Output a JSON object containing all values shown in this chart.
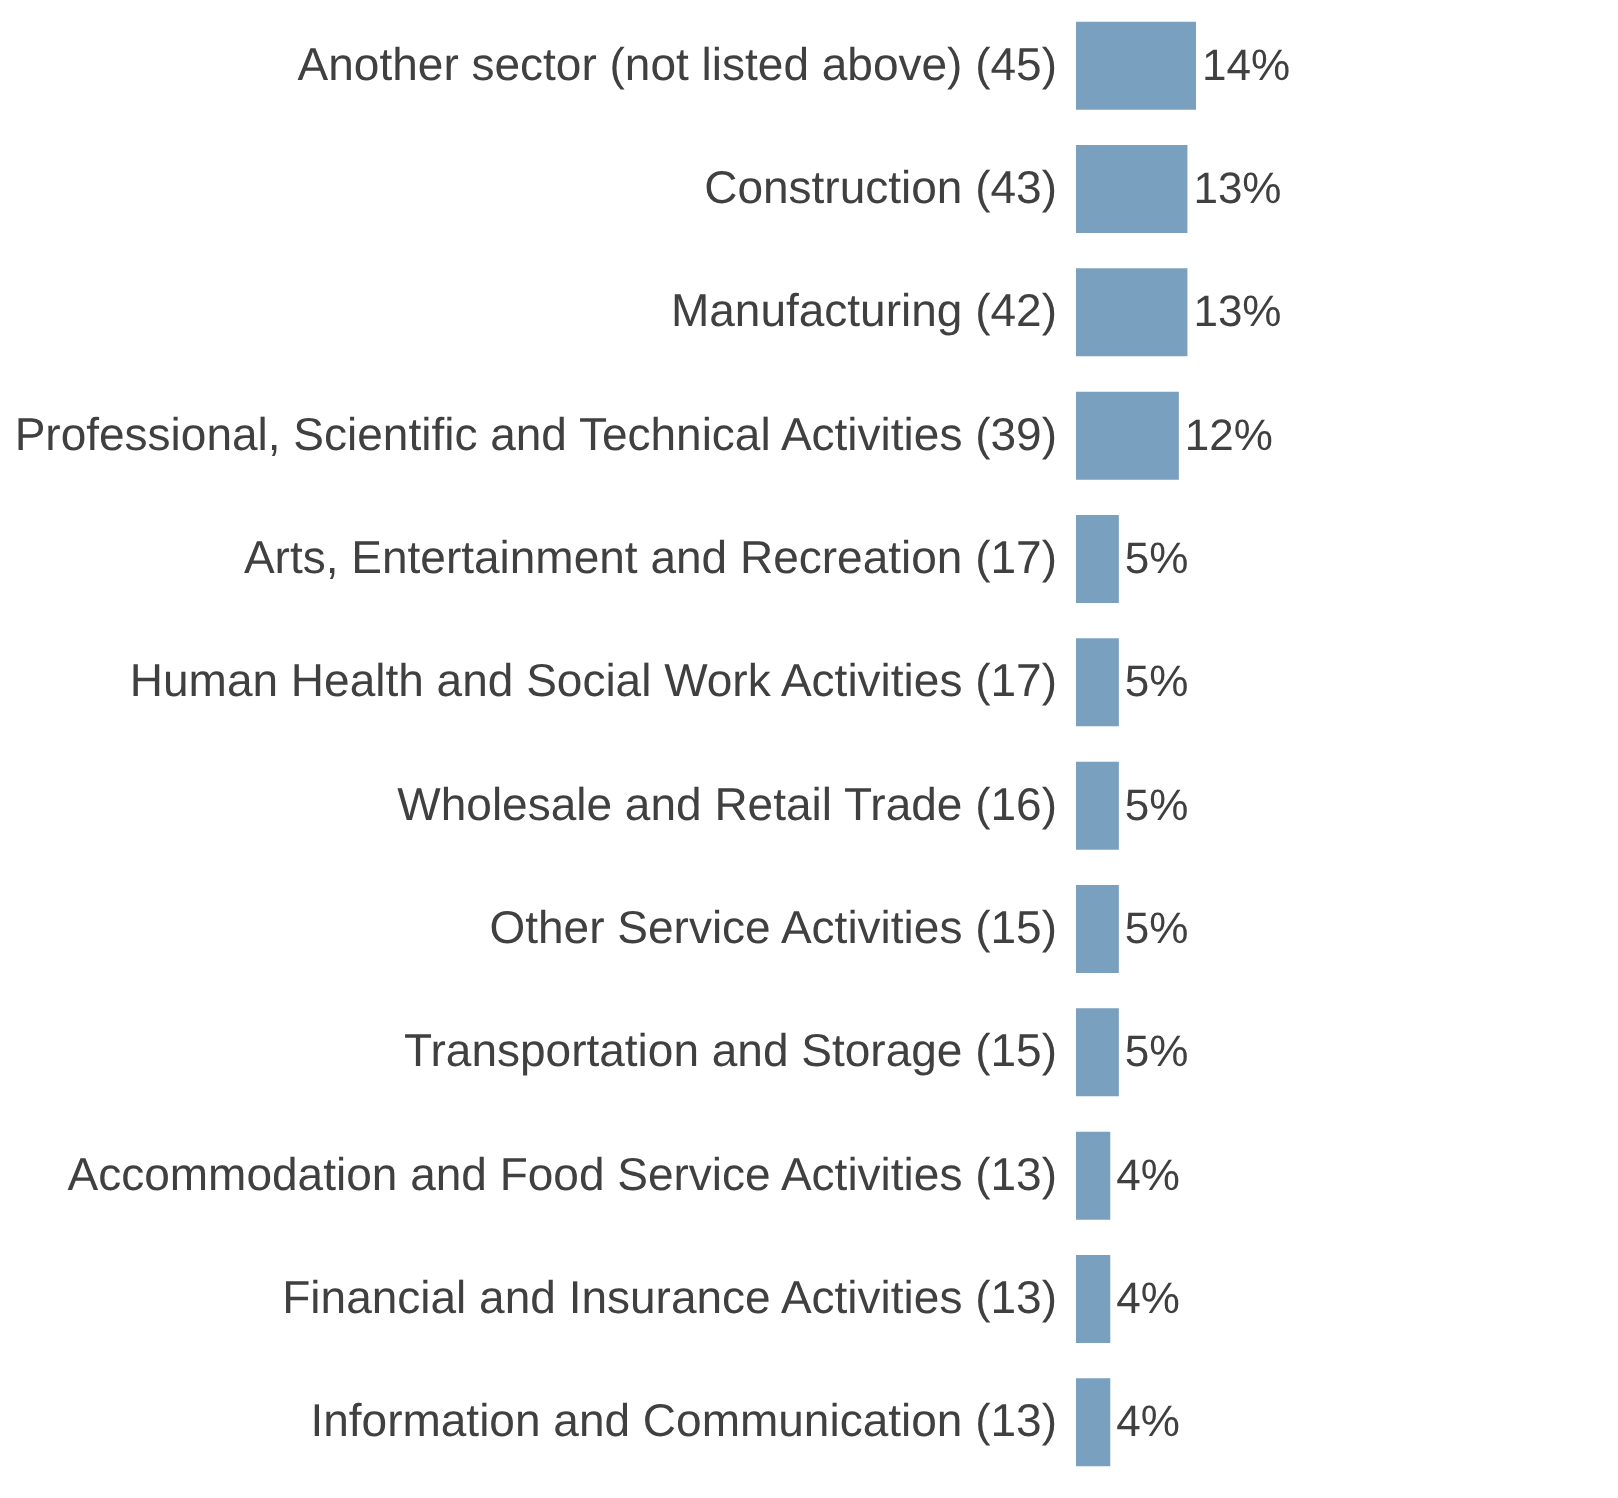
{
  "chart_data": {
    "type": "bar",
    "orientation": "horizontal",
    "categories": [
      "Another sector (not listed above) (45)",
      "Construction (43)",
      "Manufacturing (42)",
      "Professional, Scientific and Technical Activities (39)",
      "Arts, Entertainment and Recreation (17)",
      "Human Health and Social Work Activities (17)",
      "Wholesale and Retail Trade (16)",
      "Other Service Activities (15)",
      "Transportation and Storage (15)",
      "Accommodation and Food Service Activities (13)",
      "Financial and Insurance Activities (13)",
      "Information and Communication (13)"
    ],
    "values": [
      14,
      13,
      13,
      12,
      5,
      5,
      5,
      5,
      5,
      4,
      4,
      4
    ],
    "value_labels": [
      "14%",
      "13%",
      "13%",
      "12%",
      "5%",
      "5%",
      "5%",
      "5%",
      "5%",
      "4%",
      "4%",
      "4%"
    ],
    "color": "#7aa0bf"
  }
}
